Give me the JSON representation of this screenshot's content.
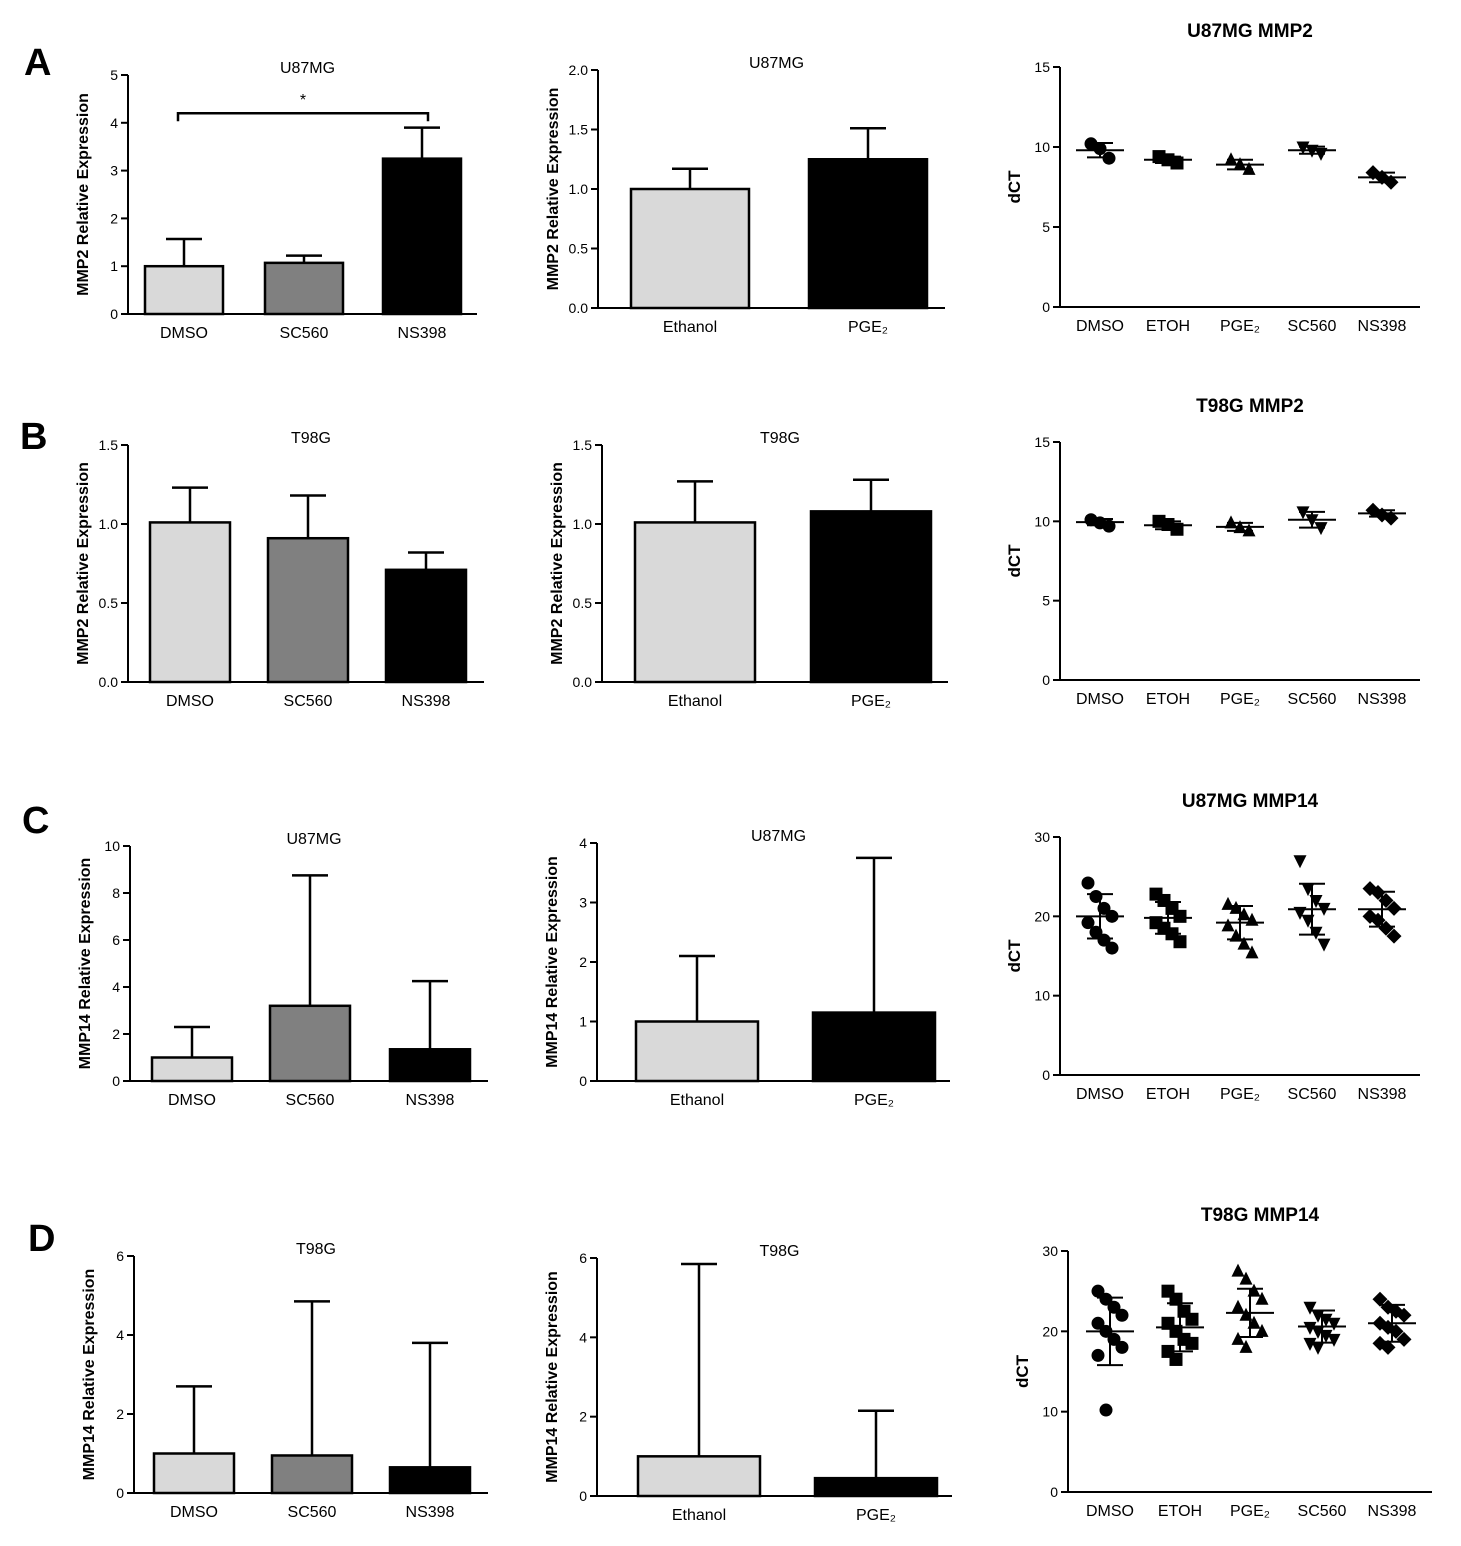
{
  "panel_labels": [
    "A",
    "B",
    "C",
    "D"
  ],
  "colors": {
    "light": "#d9d9d9",
    "mid": "#808080",
    "dark": "#000000",
    "axis": "#000000"
  },
  "chart_data": [
    {
      "id": "a1",
      "type": "bar",
      "title": "U87MG",
      "title_bold": false,
      "ylabel": "MMP2 Relative Expression",
      "ylim": [
        0,
        5
      ],
      "yticks": [
        0,
        1,
        2,
        3,
        4,
        5
      ],
      "ytick_labels": [
        "0",
        "1",
        "2",
        "3",
        "4",
        "5"
      ],
      "categories": [
        "DMSO",
        "SC560",
        "NS398"
      ],
      "values": [
        1.0,
        1.07,
        3.25
      ],
      "errors": [
        0.57,
        0.15,
        0.65
      ],
      "fills": [
        "light",
        "mid",
        "dark"
      ],
      "significance": {
        "from": 0,
        "to": 2,
        "y": 4.2,
        "label": "*"
      }
    },
    {
      "id": "a2",
      "type": "bar",
      "title": "U87MG",
      "title_bold": false,
      "ylabel": "MMP2 Relative Expression",
      "ylim": [
        0,
        2
      ],
      "yticks": [
        0,
        0.5,
        1,
        1.5,
        2
      ],
      "ytick_labels": [
        "0.0",
        "0.5",
        "1.0",
        "1.5",
        "2.0"
      ],
      "categories": [
        "Ethanol",
        "PGE₂"
      ],
      "values": [
        1.0,
        1.25
      ],
      "errors": [
        0.17,
        0.26
      ],
      "fills": [
        "light",
        "dark"
      ]
    },
    {
      "id": "a3",
      "type": "scatter",
      "title": "U87MG MMP2",
      "title_bold": true,
      "ylabel": "dCT",
      "ylim": [
        0,
        15
      ],
      "yticks": [
        0,
        5,
        10,
        15
      ],
      "ytick_labels": [
        "0",
        "5",
        "10",
        "15"
      ],
      "categories": [
        "DMSO",
        "ETOH",
        "PGE₂",
        "SC560",
        "NS398"
      ],
      "markers": [
        "circle",
        "square",
        "triangle",
        "tri-down",
        "diamond"
      ],
      "series": [
        {
          "name": "DMSO",
          "points": [
            10.2,
            9.9,
            9.3
          ],
          "mean": 9.8,
          "sd": 0.45
        },
        {
          "name": "ETOH",
          "points": [
            9.4,
            9.2,
            9.0
          ],
          "mean": 9.2,
          "sd": 0.2
        },
        {
          "name": "PGE₂",
          "points": [
            9.2,
            8.9,
            8.6
          ],
          "mean": 8.9,
          "sd": 0.3
        },
        {
          "name": "SC560",
          "points": [
            10.0,
            9.8,
            9.6
          ],
          "mean": 9.8,
          "sd": 0.22
        },
        {
          "name": "NS398",
          "points": [
            8.4,
            8.1,
            7.8
          ],
          "mean": 8.1,
          "sd": 0.3
        }
      ]
    },
    {
      "id": "b1",
      "type": "bar",
      "title": "T98G",
      "title_bold": false,
      "ylabel": "MMP2 Relative Expression",
      "ylim": [
        0,
        1.5
      ],
      "yticks": [
        0,
        0.5,
        1,
        1.5
      ],
      "ytick_labels": [
        "0.0",
        "0.5",
        "1.0",
        "1.5"
      ],
      "categories": [
        "DMSO",
        "SC560",
        "NS398"
      ],
      "values": [
        1.01,
        0.91,
        0.71
      ],
      "errors": [
        0.22,
        0.27,
        0.11
      ],
      "fills": [
        "light",
        "mid",
        "dark"
      ]
    },
    {
      "id": "b2",
      "type": "bar",
      "title": "T98G",
      "title_bold": false,
      "ylabel": "MMP2 Relative Expression",
      "ylim": [
        0,
        1.5
      ],
      "yticks": [
        0,
        0.5,
        1,
        1.5
      ],
      "ytick_labels": [
        "0.0",
        "0.5",
        "1.0",
        "1.5"
      ],
      "categories": [
        "Ethanol",
        "PGE₂"
      ],
      "values": [
        1.01,
        1.08
      ],
      "errors": [
        0.26,
        0.2
      ],
      "fills": [
        "light",
        "dark"
      ]
    },
    {
      "id": "b3",
      "type": "scatter",
      "title": "T98G MMP2",
      "title_bold": true,
      "ylabel": "dCT",
      "ylim": [
        0,
        15
      ],
      "yticks": [
        0,
        5,
        10,
        15
      ],
      "ytick_labels": [
        "0",
        "5",
        "10",
        "15"
      ],
      "categories": [
        "DMSO",
        "ETOH",
        "PGE₂",
        "SC560",
        "NS398"
      ],
      "markers": [
        "circle",
        "square",
        "triangle",
        "tri-down",
        "diamond"
      ],
      "series": [
        {
          "name": "DMSO",
          "points": [
            10.1,
            9.9,
            9.7
          ],
          "mean": 9.95,
          "sd": 0.2
        },
        {
          "name": "ETOH",
          "points": [
            10.0,
            9.8,
            9.5
          ],
          "mean": 9.75,
          "sd": 0.25
        },
        {
          "name": "PGE₂",
          "points": [
            9.9,
            9.6,
            9.4
          ],
          "mean": 9.65,
          "sd": 0.25
        },
        {
          "name": "SC560",
          "points": [
            10.6,
            10.1,
            9.6
          ],
          "mean": 10.1,
          "sd": 0.5
        },
        {
          "name": "NS398",
          "points": [
            10.7,
            10.4,
            10.2
          ],
          "mean": 10.5,
          "sd": 0.2
        }
      ]
    },
    {
      "id": "c1",
      "type": "bar",
      "title": "U87MG",
      "title_bold": false,
      "ylabel": "MMP14 Relative Expression",
      "ylim": [
        0,
        10
      ],
      "yticks": [
        0,
        2,
        4,
        6,
        8,
        10
      ],
      "ytick_labels": [
        "0",
        "2",
        "4",
        "6",
        "8",
        "10"
      ],
      "categories": [
        "DMSO",
        "SC560",
        "NS398"
      ],
      "values": [
        1.0,
        3.2,
        1.35
      ],
      "errors": [
        1.3,
        5.55,
        2.9
      ],
      "fills": [
        "light",
        "mid",
        "dark"
      ]
    },
    {
      "id": "c2",
      "type": "bar",
      "title": "U87MG",
      "title_bold": false,
      "ylabel": "MMP14 Relative Expression",
      "ylim": [
        0,
        4
      ],
      "yticks": [
        0,
        1,
        2,
        3,
        4
      ],
      "ytick_labels": [
        "0",
        "1",
        "2",
        "3",
        "4"
      ],
      "categories": [
        "Ethanol",
        "PGE₂"
      ],
      "values": [
        1.0,
        1.15
      ],
      "errors": [
        1.1,
        2.6
      ],
      "fills": [
        "light",
        "dark"
      ]
    },
    {
      "id": "c3",
      "type": "scatter",
      "title": "U87MG MMP14",
      "title_bold": true,
      "ylabel": "dCT",
      "ylim": [
        0,
        30
      ],
      "yticks": [
        0,
        10,
        20,
        30
      ],
      "ytick_labels": [
        "0",
        "10",
        "20",
        "30"
      ],
      "categories": [
        "DMSO",
        "ETOH",
        "PGE₂",
        "SC560",
        "NS398"
      ],
      "markers": [
        "circle",
        "square",
        "triangle",
        "tri-down",
        "diamond"
      ],
      "series": [
        {
          "name": "DMSO",
          "points": [
            24.2,
            22.5,
            21.0,
            20.0,
            19.2,
            18.0,
            17.0,
            16.0
          ],
          "mean": 20.0,
          "sd": 2.8
        },
        {
          "name": "ETOH",
          "points": [
            22.8,
            22.0,
            21.0,
            20.0,
            19.2,
            18.5,
            17.8,
            16.8
          ],
          "mean": 19.8,
          "sd": 2.0
        },
        {
          "name": "PGE₂",
          "points": [
            21.5,
            21.0,
            20.2,
            19.5,
            18.8,
            17.5,
            16.5,
            15.4
          ],
          "mean": 19.2,
          "sd": 2.1
        },
        {
          "name": "SC560",
          "points": [
            27.0,
            23.5,
            22.0,
            21.0,
            20.5,
            19.5,
            18.0,
            16.5
          ],
          "mean": 20.9,
          "sd": 3.2
        },
        {
          "name": "NS398",
          "points": [
            23.5,
            23.0,
            22.0,
            21.0,
            20.0,
            19.5,
            18.5,
            17.5
          ],
          "mean": 20.9,
          "sd": 2.2
        }
      ]
    },
    {
      "id": "d1",
      "type": "bar",
      "title": "T98G",
      "title_bold": false,
      "ylabel": "MMP14 Relative Expression",
      "ylim": [
        0,
        6
      ],
      "yticks": [
        0,
        2,
        4,
        6
      ],
      "ytick_labels": [
        "0",
        "2",
        "4",
        "6"
      ],
      "categories": [
        "DMSO",
        "SC560",
        "NS398"
      ],
      "values": [
        1.0,
        0.95,
        0.65
      ],
      "errors": [
        1.7,
        3.9,
        3.15
      ],
      "fills": [
        "light",
        "mid",
        "dark"
      ]
    },
    {
      "id": "d2",
      "type": "bar",
      "title": "T98G",
      "title_bold": false,
      "ylabel": "MMP14 Relative Expression",
      "ylim": [
        0,
        6
      ],
      "yticks": [
        0,
        2,
        4,
        6
      ],
      "ytick_labels": [
        "0",
        "2",
        "4",
        "6"
      ],
      "categories": [
        "Ethanol",
        "PGE₂"
      ],
      "values": [
        1.0,
        0.45
      ],
      "errors": [
        4.85,
        1.7
      ],
      "fills": [
        "light",
        "dark"
      ]
    },
    {
      "id": "d3",
      "type": "scatter",
      "title": "T98G MMP14",
      "title_bold": true,
      "ylabel": "dCT",
      "ylim": [
        0,
        30
      ],
      "yticks": [
        0,
        10,
        20,
        30
      ],
      "ytick_labels": [
        "0",
        "10",
        "20",
        "30"
      ],
      "categories": [
        "DMSO",
        "ETOH",
        "PGE₂",
        "SC560",
        "NS398"
      ],
      "markers": [
        "circle",
        "square",
        "triangle",
        "tri-down",
        "diamond"
      ],
      "series": [
        {
          "name": "DMSO",
          "points": [
            25.0,
            24.0,
            23.0,
            22.0,
            21.0,
            20.0,
            19.0,
            18.0,
            17.0,
            10.2
          ],
          "mean": 20.0,
          "sd": 4.2
        },
        {
          "name": "ETOH",
          "points": [
            25.0,
            24.0,
            22.5,
            21.5,
            21.0,
            20.0,
            19.0,
            18.5,
            17.5,
            16.5
          ],
          "mean": 20.5,
          "sd": 3.0
        },
        {
          "name": "PGE₂",
          "points": [
            27.5,
            26.5,
            25.0,
            24.0,
            23.0,
            22.0,
            21.0,
            20.0,
            19.0,
            18.0
          ],
          "mean": 22.3,
          "sd": 3.0
        },
        {
          "name": "SC560",
          "points": [
            23.0,
            22.0,
            21.5,
            21.0,
            20.5,
            20.0,
            19.5,
            19.0,
            18.5,
            18.0
          ],
          "mean": 20.6,
          "sd": 2.0
        },
        {
          "name": "NS398",
          "points": [
            24.0,
            23.0,
            22.5,
            22.0,
            21.0,
            20.5,
            20.0,
            19.0,
            18.5,
            18.0
          ],
          "mean": 21.0,
          "sd": 2.3
        }
      ]
    }
  ]
}
